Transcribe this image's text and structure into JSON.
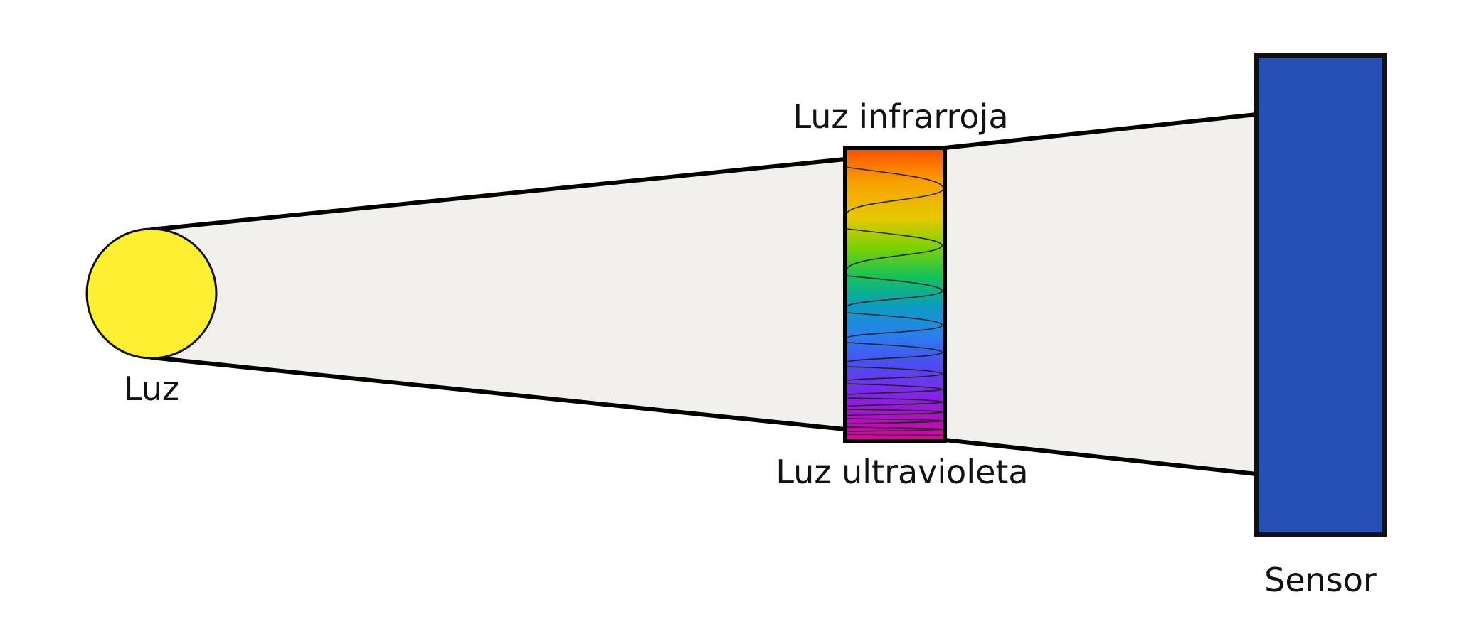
{
  "labels": {
    "source": "Luz",
    "infrared": "Luz infrarroja",
    "ultraviolet": "Luz ultravioleta",
    "sensor": "Sensor"
  },
  "colors": {
    "background": "#ffffff",
    "beam": "#f1f0ed",
    "source": "#fdf032",
    "sensor": "#2750b5",
    "outline": "#000000",
    "spectrum": [
      "#fe4d00",
      "#f7a300",
      "#e5c800",
      "#7dd100",
      "#13c35a",
      "#0c9dc0",
      "#2a7ff0",
      "#4c4df0",
      "#8b1ee8",
      "#e0009b"
    ]
  },
  "icons": {
    "source": "circle",
    "sensor": "rectangle",
    "filter": "spectrum-gradient-with-wave"
  }
}
